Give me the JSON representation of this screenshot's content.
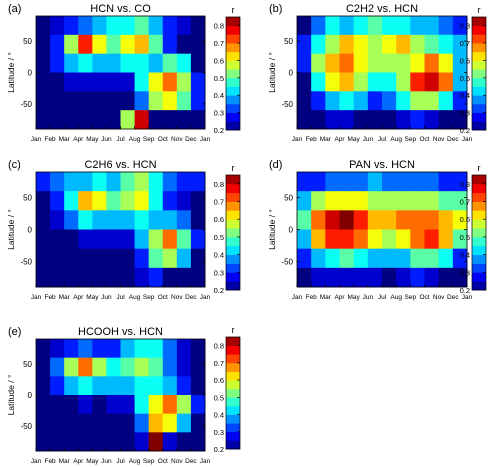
{
  "figure": {
    "panels": [
      {
        "letter": "(a)",
        "title": "HCN vs. CO"
      },
      {
        "letter": "(b)",
        "title": "C2H2 vs. HCN"
      },
      {
        "letter": "(c)",
        "title": "C2H6 vs. HCN"
      },
      {
        "letter": "(d)",
        "title": "PAN vs. HCN"
      },
      {
        "letter": "(e)",
        "title": "HCOOH vs. HCN"
      }
    ],
    "colorbar_label": "r",
    "colorbar_ticks": [
      "0.8",
      "0.7",
      "0.6",
      "0.5",
      "0.4",
      "0.3",
      "0.2"
    ],
    "ylabel": "Latitude / °",
    "y_ticks": [
      "50",
      "0",
      "-50"
    ],
    "x_ticks": [
      "Jan",
      "Feb",
      "Mar",
      "Apr",
      "May",
      "Jun",
      "Jul",
      "Aug",
      "Sep",
      "Oct",
      "Nov",
      "Dec",
      "Jan"
    ]
  },
  "chart_data": [
    {
      "type": "heatmap",
      "title": "HCN vs. CO",
      "xlabel": "",
      "ylabel": "Latitude / °",
      "x_categories": [
        "Jan",
        "Feb",
        "Mar",
        "Apr",
        "May",
        "Jun",
        "Jul",
        "Aug",
        "Sep",
        "Oct",
        "Nov",
        "Dec"
      ],
      "lat_bins": [
        75,
        45,
        15,
        -15,
        -45,
        -75
      ],
      "ylim": [
        -90,
        90
      ],
      "color_scale": {
        "label": "r",
        "min": 0.2,
        "max": 0.85
      },
      "values": [
        [
          0.2,
          0.25,
          0.3,
          0.35,
          0.4,
          0.45,
          0.45,
          0.5,
          0.4,
          0.3,
          0.25,
          0.2
        ],
        [
          0.2,
          0.3,
          0.55,
          0.75,
          0.6,
          0.5,
          0.6,
          0.65,
          0.5,
          0.3,
          0.2,
          0.2
        ],
        [
          0.2,
          0.3,
          0.4,
          0.45,
          0.4,
          0.4,
          0.45,
          0.45,
          0.4,
          0.5,
          0.45,
          0.2
        ],
        [
          0.2,
          0.2,
          0.25,
          0.25,
          0.25,
          0.25,
          0.25,
          0.45,
          0.6,
          0.7,
          0.55,
          0.3
        ],
        [
          0.2,
          0.2,
          0.2,
          0.2,
          0.2,
          0.2,
          0.2,
          0.35,
          0.55,
          0.6,
          0.5,
          0.3
        ],
        [
          0.2,
          0.2,
          0.2,
          0.2,
          0.2,
          0.2,
          0.55,
          0.8,
          0.2,
          0.2,
          0.2,
          0.2
        ]
      ]
    },
    {
      "type": "heatmap",
      "title": "C2H2 vs. HCN",
      "xlabel": "",
      "ylabel": "Latitude / °",
      "x_categories": [
        "Jan",
        "Feb",
        "Mar",
        "Apr",
        "May",
        "Jun",
        "Jul",
        "Aug",
        "Sep",
        "Oct",
        "Nov",
        "Dec"
      ],
      "lat_bins": [
        75,
        45,
        15,
        -15,
        -45,
        -75
      ],
      "ylim": [
        -90,
        90
      ],
      "color_scale": {
        "label": "r",
        "min": 0.2,
        "max": 0.85
      },
      "values": [
        [
          0.2,
          0.35,
          0.45,
          0.4,
          0.45,
          0.5,
          0.45,
          0.45,
          0.4,
          0.4,
          0.35,
          0.3
        ],
        [
          0.3,
          0.45,
          0.55,
          0.65,
          0.6,
          0.55,
          0.6,
          0.65,
          0.55,
          0.5,
          0.45,
          0.4
        ],
        [
          0.3,
          0.55,
          0.65,
          0.7,
          0.6,
          0.55,
          0.55,
          0.55,
          0.6,
          0.7,
          0.6,
          0.4
        ],
        [
          0.2,
          0.45,
          0.6,
          0.65,
          0.55,
          0.45,
          0.45,
          0.55,
          0.75,
          0.8,
          0.7,
          0.4
        ],
        [
          0.2,
          0.3,
          0.4,
          0.45,
          0.4,
          0.3,
          0.35,
          0.45,
          0.55,
          0.55,
          0.45,
          0.3
        ],
        [
          0.2,
          0.2,
          0.25,
          0.25,
          0.2,
          0.2,
          0.2,
          0.25,
          0.3,
          0.25,
          0.2,
          0.2
        ]
      ]
    },
    {
      "type": "heatmap",
      "title": "C2H6 vs. HCN",
      "xlabel": "",
      "ylabel": "Latitude / °",
      "x_categories": [
        "Jan",
        "Feb",
        "Mar",
        "Apr",
        "May",
        "Jun",
        "Jul",
        "Aug",
        "Sep",
        "Oct",
        "Nov",
        "Dec"
      ],
      "lat_bins": [
        75,
        45,
        15,
        -15,
        -45,
        -75
      ],
      "ylim": [
        -90,
        90
      ],
      "color_scale": {
        "label": "r",
        "min": 0.2,
        "max": 0.85
      },
      "values": [
        [
          0.3,
          0.35,
          0.4,
          0.4,
          0.45,
          0.4,
          0.5,
          0.55,
          0.45,
          0.35,
          0.3,
          0.3
        ],
        [
          0.2,
          0.3,
          0.45,
          0.65,
          0.6,
          0.5,
          0.55,
          0.6,
          0.45,
          0.3,
          0.25,
          0.2
        ],
        [
          0.2,
          0.25,
          0.35,
          0.45,
          0.4,
          0.4,
          0.4,
          0.45,
          0.4,
          0.4,
          0.35,
          0.2
        ],
        [
          0.2,
          0.2,
          0.2,
          0.25,
          0.25,
          0.25,
          0.25,
          0.4,
          0.55,
          0.7,
          0.5,
          0.3
        ],
        [
          0.2,
          0.2,
          0.2,
          0.2,
          0.2,
          0.2,
          0.2,
          0.3,
          0.5,
          0.55,
          0.4,
          0.2
        ],
        [
          0.2,
          0.2,
          0.2,
          0.2,
          0.2,
          0.2,
          0.2,
          0.25,
          0.3,
          0.2,
          0.2,
          0.2
        ]
      ]
    },
    {
      "type": "heatmap",
      "title": "PAN vs. HCN",
      "xlabel": "",
      "ylabel": "Latitude / °",
      "x_categories": [
        "Jan",
        "Feb",
        "Mar",
        "Apr",
        "May",
        "Jun",
        "Jul",
        "Aug",
        "Sep",
        "Oct",
        "Nov",
        "Dec"
      ],
      "lat_bins": [
        75,
        45,
        15,
        -15,
        -45,
        -75
      ],
      "ylim": [
        -90,
        90
      ],
      "color_scale": {
        "label": "r",
        "min": 0.2,
        "max": 0.85
      },
      "values": [
        [
          0.3,
          0.3,
          0.35,
          0.35,
          0.35,
          0.4,
          0.35,
          0.35,
          0.35,
          0.35,
          0.3,
          0.3
        ],
        [
          0.4,
          0.55,
          0.6,
          0.6,
          0.6,
          0.55,
          0.55,
          0.55,
          0.55,
          0.55,
          0.5,
          0.5
        ],
        [
          0.5,
          0.7,
          0.8,
          0.85,
          0.75,
          0.65,
          0.65,
          0.7,
          0.7,
          0.7,
          0.65,
          0.6
        ],
        [
          0.4,
          0.65,
          0.75,
          0.75,
          0.7,
          0.6,
          0.55,
          0.6,
          0.7,
          0.75,
          0.65,
          0.5
        ],
        [
          0.3,
          0.4,
          0.45,
          0.5,
          0.45,
          0.4,
          0.4,
          0.4,
          0.5,
          0.5,
          0.45,
          0.3
        ],
        [
          0.2,
          0.25,
          0.25,
          0.25,
          0.25,
          0.25,
          0.2,
          0.25,
          0.3,
          0.25,
          0.2,
          0.2
        ]
      ]
    },
    {
      "type": "heatmap",
      "title": "HCOOH vs. HCN",
      "xlabel": "",
      "ylabel": "Latitude / °",
      "x_categories": [
        "Jan",
        "Feb",
        "Mar",
        "Apr",
        "May",
        "Jun",
        "Jul",
        "Aug",
        "Sep",
        "Oct",
        "Nov",
        "Dec"
      ],
      "lat_bins": [
        75,
        45,
        15,
        -15,
        -45,
        -75
      ],
      "ylim": [
        -90,
        90
      ],
      "color_scale": {
        "label": "r",
        "min": 0.2,
        "max": 0.85
      },
      "values": [
        [
          0.2,
          0.25,
          0.3,
          0.35,
          0.3,
          0.3,
          0.4,
          0.45,
          0.45,
          0.35,
          0.25,
          0.2
        ],
        [
          0.2,
          0.35,
          0.55,
          0.7,
          0.55,
          0.45,
          0.5,
          0.55,
          0.5,
          0.35,
          0.25,
          0.2
        ],
        [
          0.2,
          0.3,
          0.4,
          0.45,
          0.4,
          0.4,
          0.4,
          0.45,
          0.45,
          0.4,
          0.3,
          0.2
        ],
        [
          0.2,
          0.2,
          0.2,
          0.25,
          0.2,
          0.25,
          0.25,
          0.45,
          0.6,
          0.7,
          0.55,
          0.3
        ],
        [
          0.2,
          0.2,
          0.2,
          0.2,
          0.2,
          0.2,
          0.2,
          0.35,
          0.65,
          0.6,
          0.4,
          0.2
        ],
        [
          0.2,
          0.2,
          0.2,
          0.2,
          0.2,
          0.2,
          0.2,
          0.25,
          0.85,
          0.25,
          0.2,
          0.2
        ]
      ]
    }
  ]
}
